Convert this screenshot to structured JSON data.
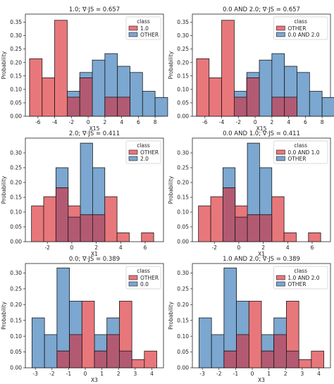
{
  "colors": {
    "first_series": "#e8777b",
    "second_series": "#7ba7d0",
    "overlap": "#b35a73"
  },
  "chart_data": [
    {
      "type": "histogram",
      "title": "1.0; ∇·JS = 0.657",
      "xlabel": "X15",
      "ylabel": "Probability",
      "xlim": [
        -7.5,
        9
      ],
      "ylim": [
        0,
        0.38
      ],
      "xticks": [
        "-6",
        "-4",
        "-2",
        "0",
        "2",
        "4",
        "6",
        "8"
      ],
      "yticks": [
        "0.00",
        "0.05",
        "0.10",
        "0.15",
        "0.20",
        "0.25",
        "0.30",
        "0.35"
      ],
      "legend_title": "class",
      "legend_loc": "upper right",
      "series": [
        {
          "name": "1.0",
          "color": "#e8777b",
          "x_start": -7,
          "bin_width": 1.5,
          "values": [
            0.214,
            0.143,
            0.357,
            0.071,
            0.143,
            0,
            0.071,
            0.071
          ]
        },
        {
          "name": "OTHER",
          "color": "#7ba7d0",
          "x_start": -2.5,
          "bin_width": 1.5,
          "values": [
            0.093,
            0.163,
            0.209,
            0.233,
            0.186,
            0.163,
            0.093,
            0.07
          ]
        }
      ]
    },
    {
      "type": "histogram",
      "title": "0.0 AND 2.0; ∇·JS = 0.657",
      "xlabel": "X15",
      "ylabel": "Probability",
      "xlim": [
        -7.5,
        9
      ],
      "ylim": [
        0,
        0.38
      ],
      "xticks": [
        "-6",
        "-4",
        "-2",
        "0",
        "2",
        "4",
        "6",
        "8"
      ],
      "yticks": [
        "0.00",
        "0.05",
        "0.10",
        "0.15",
        "0.20",
        "0.25",
        "0.30",
        "0.35"
      ],
      "legend_title": "class",
      "legend_loc": "upper right",
      "series": [
        {
          "name": "OTHER",
          "color": "#e8777b",
          "x_start": -7,
          "bin_width": 1.5,
          "values": [
            0.214,
            0.143,
            0.357,
            0.071,
            0.143,
            0,
            0.071,
            0.071
          ]
        },
        {
          "name": "0.0 AND 2.0",
          "color": "#7ba7d0",
          "x_start": -2.5,
          "bin_width": 1.5,
          "values": [
            0.093,
            0.163,
            0.209,
            0.233,
            0.186,
            0.163,
            0.093,
            0.07
          ]
        }
      ]
    },
    {
      "type": "histogram",
      "title": "2.0; ∇·JS = 0.411",
      "xlabel": "X1",
      "ylabel": "Probability",
      "xlim": [
        -3.8,
        7.5
      ],
      "ylim": [
        0,
        0.35
      ],
      "xticks": [
        "-2",
        "0",
        "2",
        "4",
        "6"
      ],
      "yticks": [
        "0.00",
        "0.05",
        "0.10",
        "0.15",
        "0.20",
        "0.25",
        "0.30"
      ],
      "legend_title": "class",
      "legend_loc": "upper right",
      "series": [
        {
          "name": "OTHER",
          "color": "#e8777b",
          "x_start": -3.3,
          "bin_width": 1,
          "values": [
            0.121,
            0.152,
            0.182,
            0.121,
            0.091,
            0.091,
            0.152,
            0.03,
            0,
            0.03
          ]
        },
        {
          "name": "2.0",
          "color": "#7ba7d0",
          "x_start": -1.3,
          "bin_width": 1,
          "values": [
            0.25,
            0.083,
            0.333,
            0.25
          ]
        }
      ]
    },
    {
      "type": "histogram",
      "title": "0.0 AND 1.0; ∇·JS = 0.411",
      "xlabel": "X1",
      "ylabel": "Probability",
      "xlim": [
        -3.8,
        7.5
      ],
      "ylim": [
        0,
        0.35
      ],
      "xticks": [
        "-2",
        "0",
        "2",
        "4",
        "6"
      ],
      "yticks": [
        "0.00",
        "0.05",
        "0.10",
        "0.15",
        "0.20",
        "0.25",
        "0.30"
      ],
      "legend_title": "class",
      "legend_loc": "upper right",
      "series": [
        {
          "name": "0.0 AND 1.0",
          "color": "#e8777b",
          "x_start": -3.3,
          "bin_width": 1,
          "values": [
            0.121,
            0.152,
            0.182,
            0.121,
            0.091,
            0.091,
            0.152,
            0.03,
            0,
            0.03
          ]
        },
        {
          "name": "OTHER",
          "color": "#7ba7d0",
          "x_start": -1.3,
          "bin_width": 1,
          "values": [
            0.25,
            0.083,
            0.333,
            0.25
          ]
        }
      ]
    },
    {
      "type": "histogram",
      "title": "0.0; ∇·JS = 0.389",
      "xlabel": "X3",
      "ylabel": "Probability",
      "xlim": [
        -3.6,
        4.7
      ],
      "ylim": [
        0,
        0.33
      ],
      "xticks": [
        "-3",
        "-2",
        "-1",
        "0",
        "1",
        "2",
        "3",
        "4"
      ],
      "yticks": [
        "0.00",
        "0.05",
        "0.10",
        "0.15",
        "0.20",
        "0.25",
        "0.30"
      ],
      "legend_title": "class",
      "legend_loc": "upper right",
      "series": [
        {
          "name": "OTHER",
          "color": "#e8777b",
          "x_start": -3.2,
          "bin_width": 0.75,
          "values": [
            0,
            0,
            0.053,
            0.105,
            0.211,
            0.053,
            0.105,
            0.211,
            0.026,
            0.053
          ]
        },
        {
          "name": "0.0",
          "color": "#7ba7d0",
          "x_start": -3.2,
          "bin_width": 0.75,
          "values": [
            0.158,
            0.105,
            0.316,
            0.211,
            0,
            0.105,
            0.158,
            0.053
          ]
        }
      ]
    },
    {
      "type": "histogram",
      "title": "1.0 AND 2.0; ∇·JS = 0.389",
      "xlabel": "X3",
      "ylabel": "Probability",
      "xlim": [
        -3.6,
        4.7
      ],
      "ylim": [
        0,
        0.33
      ],
      "xticks": [
        "-3",
        "-2",
        "-1",
        "0",
        "1",
        "2",
        "3",
        "4"
      ],
      "yticks": [
        "0.00",
        "0.05",
        "0.10",
        "0.15",
        "0.20",
        "0.25",
        "0.30"
      ],
      "legend_title": "class",
      "legend_loc": "upper right",
      "series": [
        {
          "name": "1.0 AND 2.0",
          "color": "#e8777b",
          "x_start": -3.2,
          "bin_width": 0.75,
          "values": [
            0,
            0,
            0.053,
            0.105,
            0.211,
            0.053,
            0.105,
            0.211,
            0.026,
            0.053
          ]
        },
        {
          "name": "OTHER",
          "color": "#7ba7d0",
          "x_start": -3.2,
          "bin_width": 0.75,
          "values": [
            0.158,
            0.105,
            0.316,
            0.211,
            0,
            0.105,
            0.158,
            0.053
          ]
        }
      ]
    }
  ]
}
